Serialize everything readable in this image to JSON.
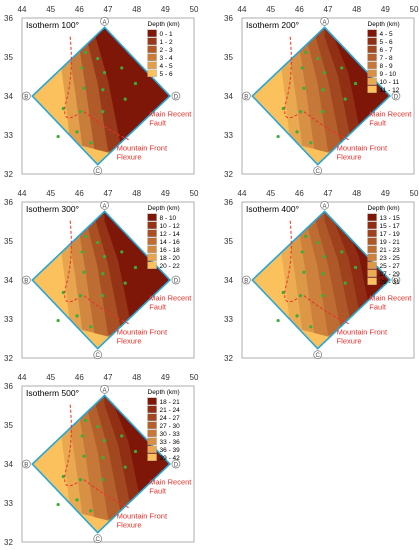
{
  "axes": {
    "x_ticks": [
      "44",
      "45",
      "46",
      "47",
      "48",
      "49",
      "50"
    ],
    "y_ticks": [
      "36",
      "35",
      "34",
      "33",
      "32"
    ]
  },
  "legend": {
    "title": "Depth (km)"
  },
  "corners": {
    "a": "A",
    "b": "B",
    "c": "C",
    "d": "D"
  },
  "annotations": {
    "fault": [
      "Main Recent",
      "Fault"
    ],
    "flexure": [
      "Mountain Front",
      "Flexure"
    ]
  },
  "colors": {
    "frame": "#29a6d6",
    "annotation": "#e8312b",
    "wells": "#3aae3a",
    "fill_lightest": "#fbc15c",
    "fill_darkest": "#7f1708"
  },
  "panels": [
    {
      "title": "Isotherm 100°",
      "ranges": [
        "0 - 1",
        "1 - 2",
        "2 - 3",
        "3 - 4",
        "4 - 5",
        "5 - 6"
      ]
    },
    {
      "title": "Isotherm 200°",
      "ranges": [
        "4 - 5",
        "5 - 6",
        "6 - 7",
        "7 - 8",
        "8 - 9",
        "9 - 10",
        "10 - 11",
        "11 - 12"
      ]
    },
    {
      "title": "Isotherm 300°",
      "ranges": [
        "8 - 10",
        "10 - 12",
        "12 - 14",
        "14 - 16",
        "16 - 18",
        "18 - 20",
        "20 - 22"
      ]
    },
    {
      "title": "Isotherm 400°",
      "ranges": [
        "13 - 15",
        "15 - 17",
        "17 - 19",
        "19 - 21",
        "21 - 23",
        "23 - 25",
        "25 - 27",
        "27 - 29",
        "29 - 31"
      ]
    },
    {
      "title": "Isotherm 500°",
      "ranges": [
        "18 - 21",
        "21 - 24",
        "24 - 27",
        "27 - 30",
        "30 - 33",
        "33 - 36",
        "36 - 39",
        "39 - 42"
      ]
    }
  ]
}
